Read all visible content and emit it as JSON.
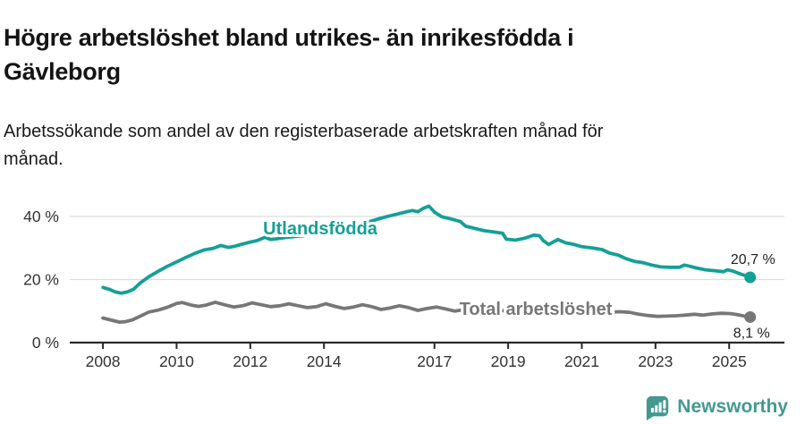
{
  "header": {
    "title_line1": "Högre arbetslöshet bland utrikes- än inrikesfödda i",
    "title_line2": "Gävleborg",
    "subtitle_line1": "Arbetssökande som andel av den registerbaserade arbetskraften månad för",
    "subtitle_line2": "månad."
  },
  "footer": {
    "brand": "Newsworthy"
  },
  "colors": {
    "accent_teal": "#14a096",
    "series_gray": "#777777",
    "logo_teal": "#44998f",
    "grid": "#dddddd",
    "axis": "#2a2a2a",
    "text_dark": "#1a1a1a"
  },
  "chart_data": {
    "type": "line",
    "unit": "%",
    "grid": true,
    "xlim": [
      2007.1,
      2026.5
    ],
    "ylim": [
      0,
      50.5
    ],
    "x_ticks": [
      {
        "value": 2008,
        "label": "2008"
      },
      {
        "value": 2010,
        "label": "2010"
      },
      {
        "value": 2012,
        "label": "2012"
      },
      {
        "value": 2014,
        "label": "2014"
      },
      {
        "value": 2017,
        "label": "2017"
      },
      {
        "value": 2019,
        "label": "2019"
      },
      {
        "value": 2021,
        "label": "2021"
      },
      {
        "value": 2023,
        "label": "2023"
      },
      {
        "value": 2025,
        "label": "2025"
      }
    ],
    "y_ticks": [
      {
        "value": 0,
        "label": "0 %"
      },
      {
        "value": 20,
        "label": "20 %"
      },
      {
        "value": 40,
        "label": "40 %"
      }
    ],
    "series": [
      {
        "name": "Utlandsfödda",
        "color": "#14a096",
        "label": {
          "text": "Utlandsfödda",
          "x": 2013.9,
          "y": 36.3
        },
        "annotation": {
          "text": "20,7 %",
          "dx": 28,
          "dy": -15
        },
        "end_value": "20,7 %",
        "points": [
          [
            2008.0,
            17.5
          ],
          [
            2008.17,
            16.9
          ],
          [
            2008.33,
            16.1
          ],
          [
            2008.5,
            15.7
          ],
          [
            2008.67,
            16.1
          ],
          [
            2008.83,
            16.9
          ],
          [
            2009.0,
            18.8
          ],
          [
            2009.25,
            20.9
          ],
          [
            2009.5,
            22.6
          ],
          [
            2009.75,
            24.2
          ],
          [
            2010.0,
            25.6
          ],
          [
            2010.25,
            27.0
          ],
          [
            2010.5,
            28.3
          ],
          [
            2010.75,
            29.4
          ],
          [
            2011.0,
            29.9
          ],
          [
            2011.2,
            30.8
          ],
          [
            2011.4,
            30.2
          ],
          [
            2011.6,
            30.6
          ],
          [
            2011.8,
            31.3
          ],
          [
            2012.0,
            31.9
          ],
          [
            2012.2,
            32.4
          ],
          [
            2012.4,
            33.4
          ],
          [
            2012.55,
            32.7
          ],
          [
            2012.75,
            33.0
          ],
          [
            2013.0,
            33.4
          ],
          [
            2013.25,
            33.7
          ],
          [
            2013.5,
            34.0
          ],
          [
            2013.75,
            34.4
          ],
          [
            2014.0,
            34.9
          ],
          [
            2014.25,
            35.5
          ],
          [
            2014.5,
            36.1
          ],
          [
            2014.75,
            36.8
          ],
          [
            2015.0,
            37.6
          ],
          [
            2015.25,
            38.4
          ],
          [
            2015.5,
            39.3
          ],
          [
            2015.75,
            40.1
          ],
          [
            2016.0,
            40.8
          ],
          [
            2016.25,
            41.5
          ],
          [
            2016.4,
            41.9
          ],
          [
            2016.55,
            41.5
          ],
          [
            2016.7,
            42.6
          ],
          [
            2016.85,
            43.3
          ],
          [
            2017.0,
            41.4
          ],
          [
            2017.2,
            39.9
          ],
          [
            2017.45,
            39.2
          ],
          [
            2017.7,
            38.4
          ],
          [
            2017.85,
            36.9
          ],
          [
            2018.1,
            36.2
          ],
          [
            2018.35,
            35.5
          ],
          [
            2018.6,
            35.1
          ],
          [
            2018.85,
            34.7
          ],
          [
            2018.95,
            32.8
          ],
          [
            2019.2,
            32.5
          ],
          [
            2019.45,
            33.1
          ],
          [
            2019.7,
            34.1
          ],
          [
            2019.85,
            33.9
          ],
          [
            2019.95,
            32.4
          ],
          [
            2020.1,
            31.1
          ],
          [
            2020.35,
            32.7
          ],
          [
            2020.55,
            31.7
          ],
          [
            2020.8,
            31.1
          ],
          [
            2021.0,
            30.4
          ],
          [
            2021.3,
            30.0
          ],
          [
            2021.55,
            29.5
          ],
          [
            2021.75,
            28.4
          ],
          [
            2022.0,
            27.7
          ],
          [
            2022.2,
            26.6
          ],
          [
            2022.45,
            25.7
          ],
          [
            2022.65,
            25.4
          ],
          [
            2022.9,
            24.6
          ],
          [
            2023.15,
            24.0
          ],
          [
            2023.4,
            23.9
          ],
          [
            2023.65,
            23.9
          ],
          [
            2023.78,
            24.6
          ],
          [
            2023.9,
            24.3
          ],
          [
            2024.1,
            23.7
          ],
          [
            2024.35,
            23.1
          ],
          [
            2024.6,
            22.8
          ],
          [
            2024.85,
            22.5
          ],
          [
            2024.95,
            23.1
          ],
          [
            2025.1,
            22.7
          ],
          [
            2025.3,
            21.8
          ],
          [
            2025.45,
            21.2
          ],
          [
            2025.57,
            20.7
          ]
        ]
      },
      {
        "name": "Total arbetslöshet",
        "color": "#777777",
        "label": {
          "text": "Total arbetslöshet",
          "x": 2019.75,
          "y": 10.8
        },
        "annotation": {
          "text": "8,1 %",
          "dx": 22,
          "dy": 23
        },
        "end_value": "8,1 %",
        "points": [
          [
            2008.0,
            7.8
          ],
          [
            2008.2,
            7.2
          ],
          [
            2008.45,
            6.5
          ],
          [
            2008.6,
            6.6
          ],
          [
            2008.8,
            7.2
          ],
          [
            2009.0,
            8.3
          ],
          [
            2009.25,
            9.7
          ],
          [
            2009.5,
            10.3
          ],
          [
            2009.75,
            11.2
          ],
          [
            2010.0,
            12.4
          ],
          [
            2010.15,
            12.7
          ],
          [
            2010.4,
            11.9
          ],
          [
            2010.6,
            11.5
          ],
          [
            2010.8,
            11.9
          ],
          [
            2011.05,
            12.8
          ],
          [
            2011.3,
            12.0
          ],
          [
            2011.55,
            11.3
          ],
          [
            2011.8,
            11.7
          ],
          [
            2012.05,
            12.6
          ],
          [
            2012.3,
            12.0
          ],
          [
            2012.55,
            11.4
          ],
          [
            2012.8,
            11.7
          ],
          [
            2013.05,
            12.3
          ],
          [
            2013.3,
            11.7
          ],
          [
            2013.55,
            11.1
          ],
          [
            2013.8,
            11.4
          ],
          [
            2014.05,
            12.3
          ],
          [
            2014.3,
            11.5
          ],
          [
            2014.55,
            10.8
          ],
          [
            2014.8,
            11.3
          ],
          [
            2015.05,
            12.0
          ],
          [
            2015.3,
            11.4
          ],
          [
            2015.55,
            10.5
          ],
          [
            2015.8,
            11.0
          ],
          [
            2016.05,
            11.7
          ],
          [
            2016.3,
            11.1
          ],
          [
            2016.55,
            10.2
          ],
          [
            2016.8,
            10.8
          ],
          [
            2017.05,
            11.3
          ],
          [
            2017.3,
            10.7
          ],
          [
            2017.55,
            10.0
          ],
          [
            2017.8,
            10.4
          ],
          [
            2018.05,
            10.9
          ],
          [
            2018.3,
            10.3
          ],
          [
            2018.55,
            9.7
          ],
          [
            2018.8,
            10.0
          ],
          [
            2019.05,
            10.4
          ],
          [
            2019.3,
            10.0
          ],
          [
            2019.55,
            9.8
          ],
          [
            2019.8,
            10.2
          ],
          [
            2020.05,
            10.6
          ],
          [
            2020.3,
            11.3
          ],
          [
            2020.55,
            11.0
          ],
          [
            2020.8,
            10.8
          ],
          [
            2021.05,
            10.9
          ],
          [
            2021.3,
            10.4
          ],
          [
            2021.55,
            9.9
          ],
          [
            2021.8,
            9.7
          ],
          [
            2022.05,
            9.8
          ],
          [
            2022.3,
            9.6
          ],
          [
            2022.55,
            9.0
          ],
          [
            2022.8,
            8.6
          ],
          [
            2023.05,
            8.3
          ],
          [
            2023.3,
            8.4
          ],
          [
            2023.55,
            8.5
          ],
          [
            2023.8,
            8.7
          ],
          [
            2024.05,
            9.0
          ],
          [
            2024.3,
            8.7
          ],
          [
            2024.55,
            9.1
          ],
          [
            2024.8,
            9.3
          ],
          [
            2025.05,
            9.2
          ],
          [
            2025.25,
            8.8
          ],
          [
            2025.45,
            8.3
          ],
          [
            2025.57,
            8.1
          ]
        ]
      }
    ]
  }
}
